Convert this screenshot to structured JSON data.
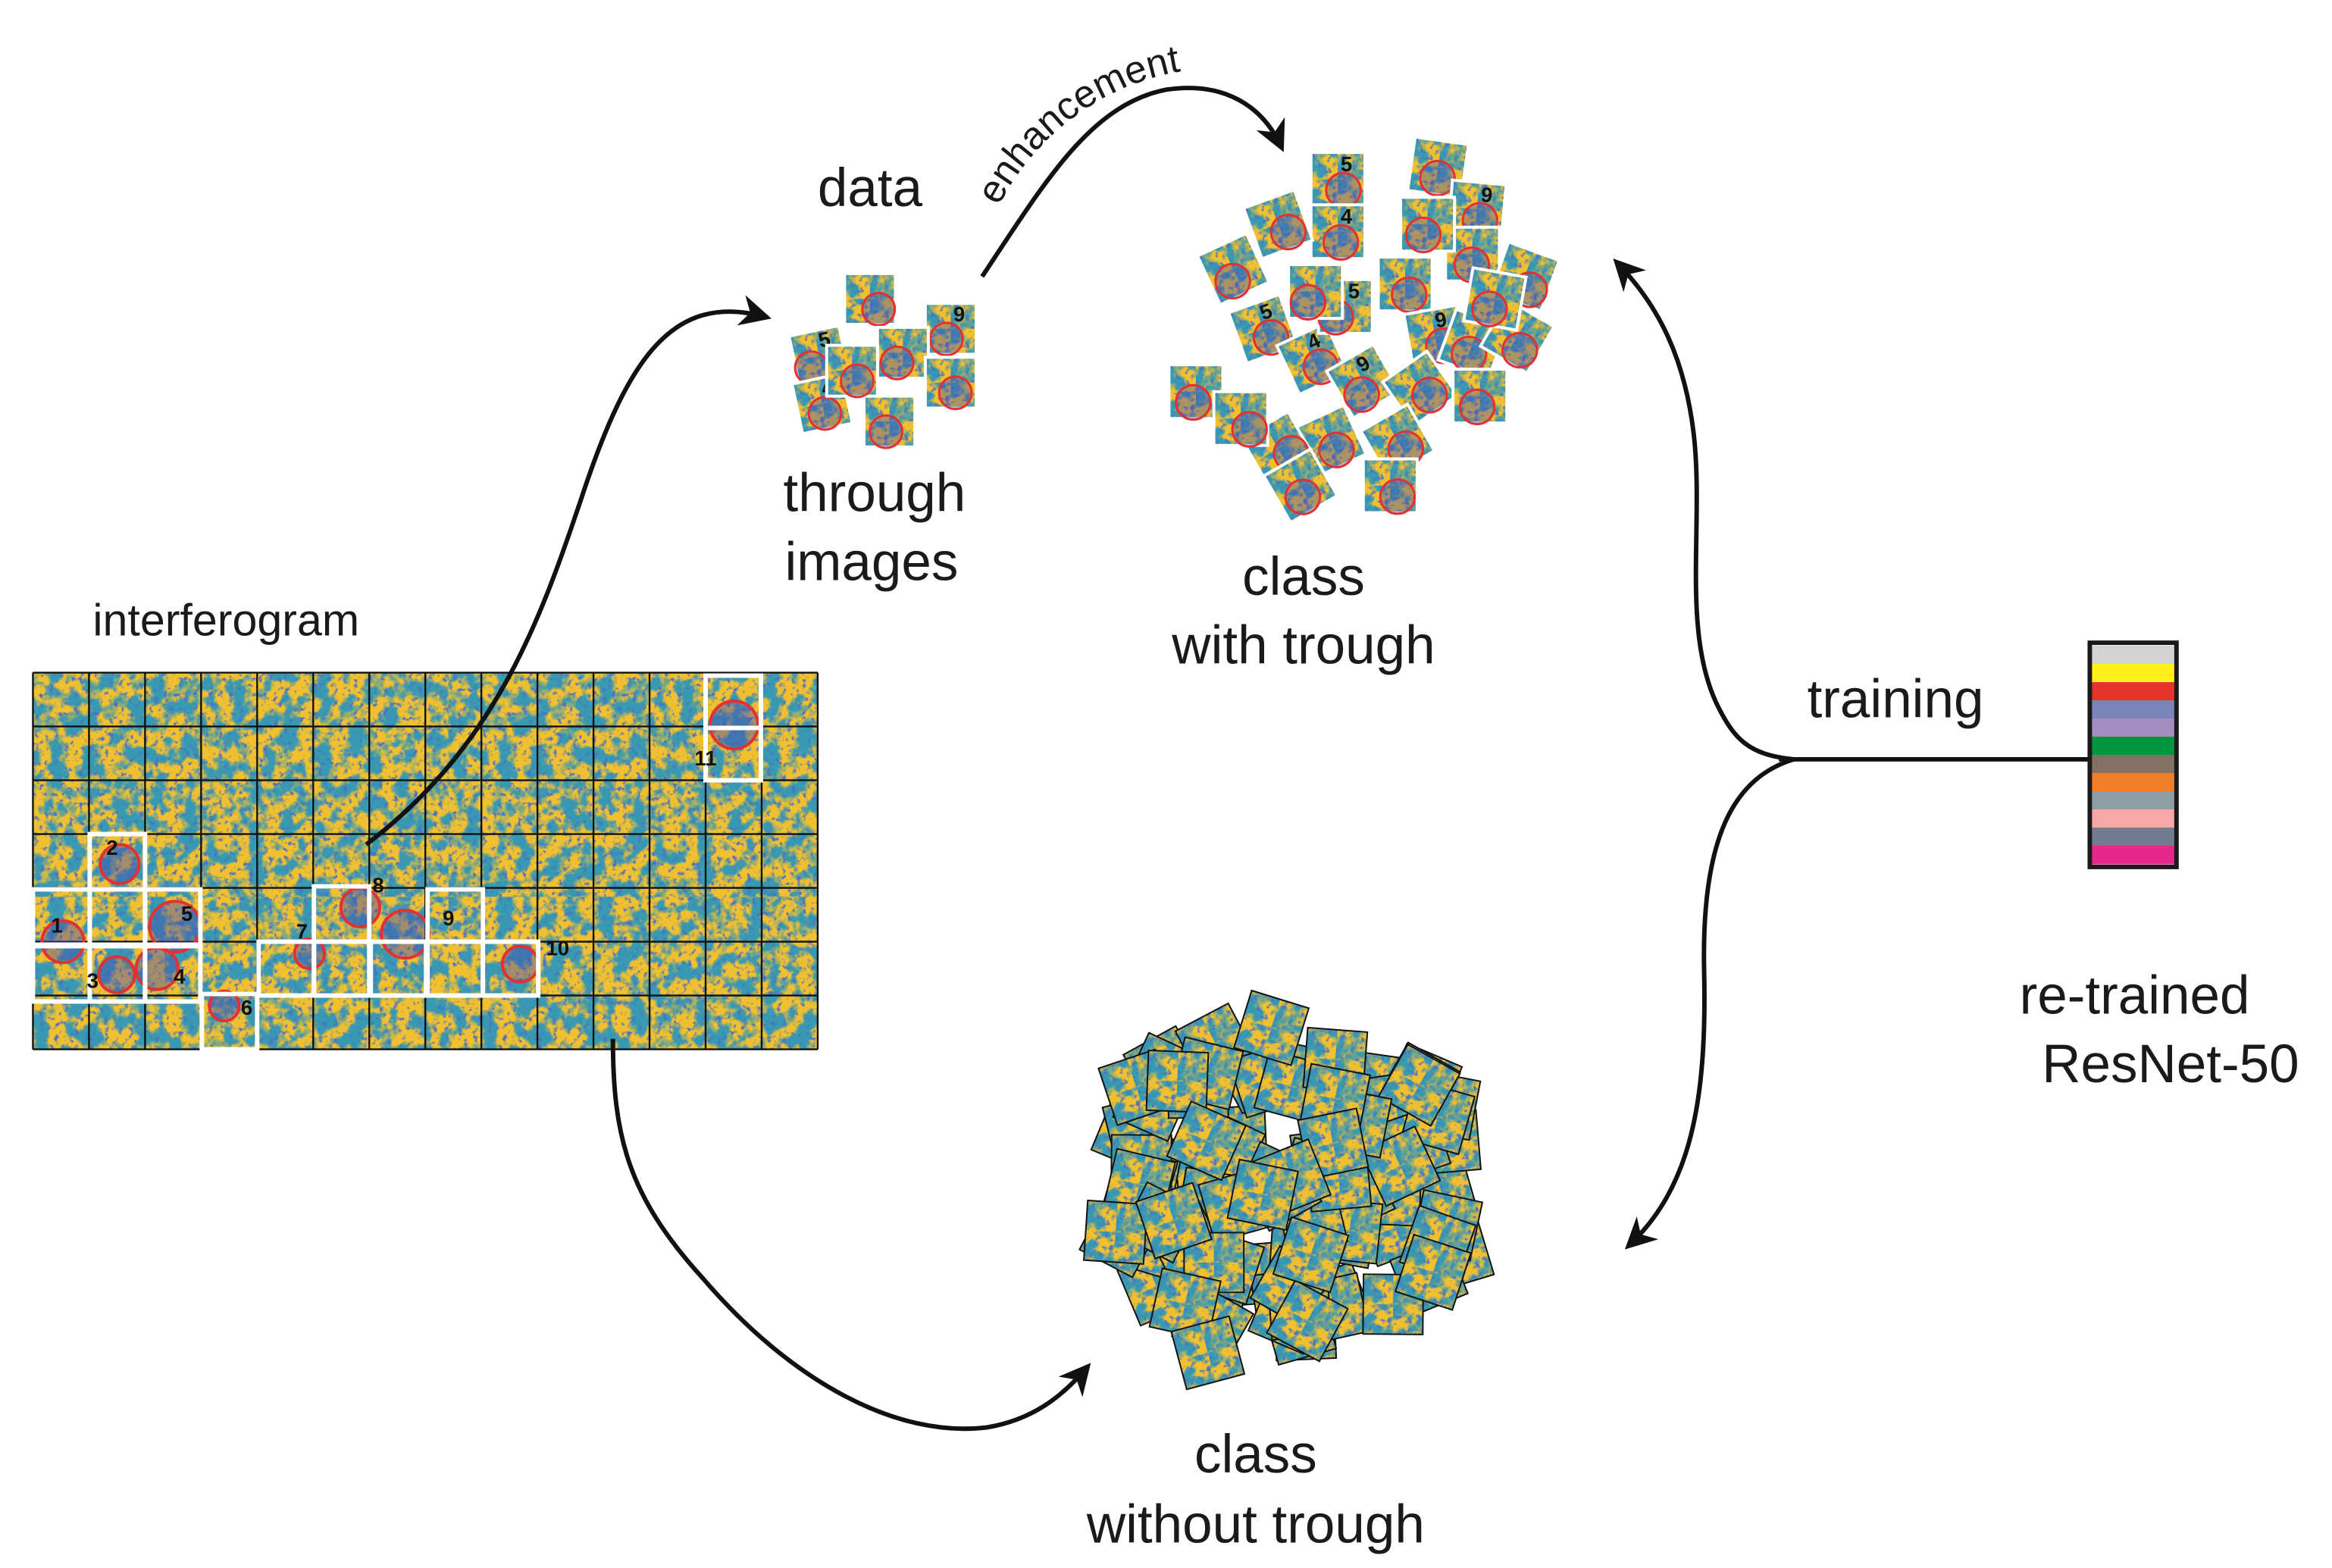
{
  "labels": {
    "interferogram": "interferogram",
    "data": "data",
    "enhancement": "enhancement",
    "through_line1": "through",
    "through_line2": "images",
    "with_line1": "class",
    "with_line2": "with trough",
    "without_line1": "class",
    "without_line2": "without trough",
    "training": "training",
    "resnet_line1": "re-trained",
    "resnet_line2": "ResNet-50"
  },
  "interferogram_markers": [
    "1",
    "2",
    "3",
    "4",
    "5",
    "6",
    "7",
    "8",
    "9",
    "10",
    "11"
  ],
  "tile_numbers": [
    "5",
    "4",
    "9"
  ],
  "colors": {
    "texture_yellow": "#f0c030",
    "texture_teal": "#3a9fb0",
    "trough_circle": "#e63030",
    "selection_box": "#ffffff",
    "arrow": "#111111"
  },
  "resnet_stripes": [
    "#d4d2d2",
    "#fff01a",
    "#e5342e",
    "#7b84b8",
    "#a28fbf",
    "#009640",
    "#817063",
    "#ef7d2a",
    "#8e9ea4",
    "#f5a8a6",
    "#737b91",
    "#e5288a"
  ]
}
